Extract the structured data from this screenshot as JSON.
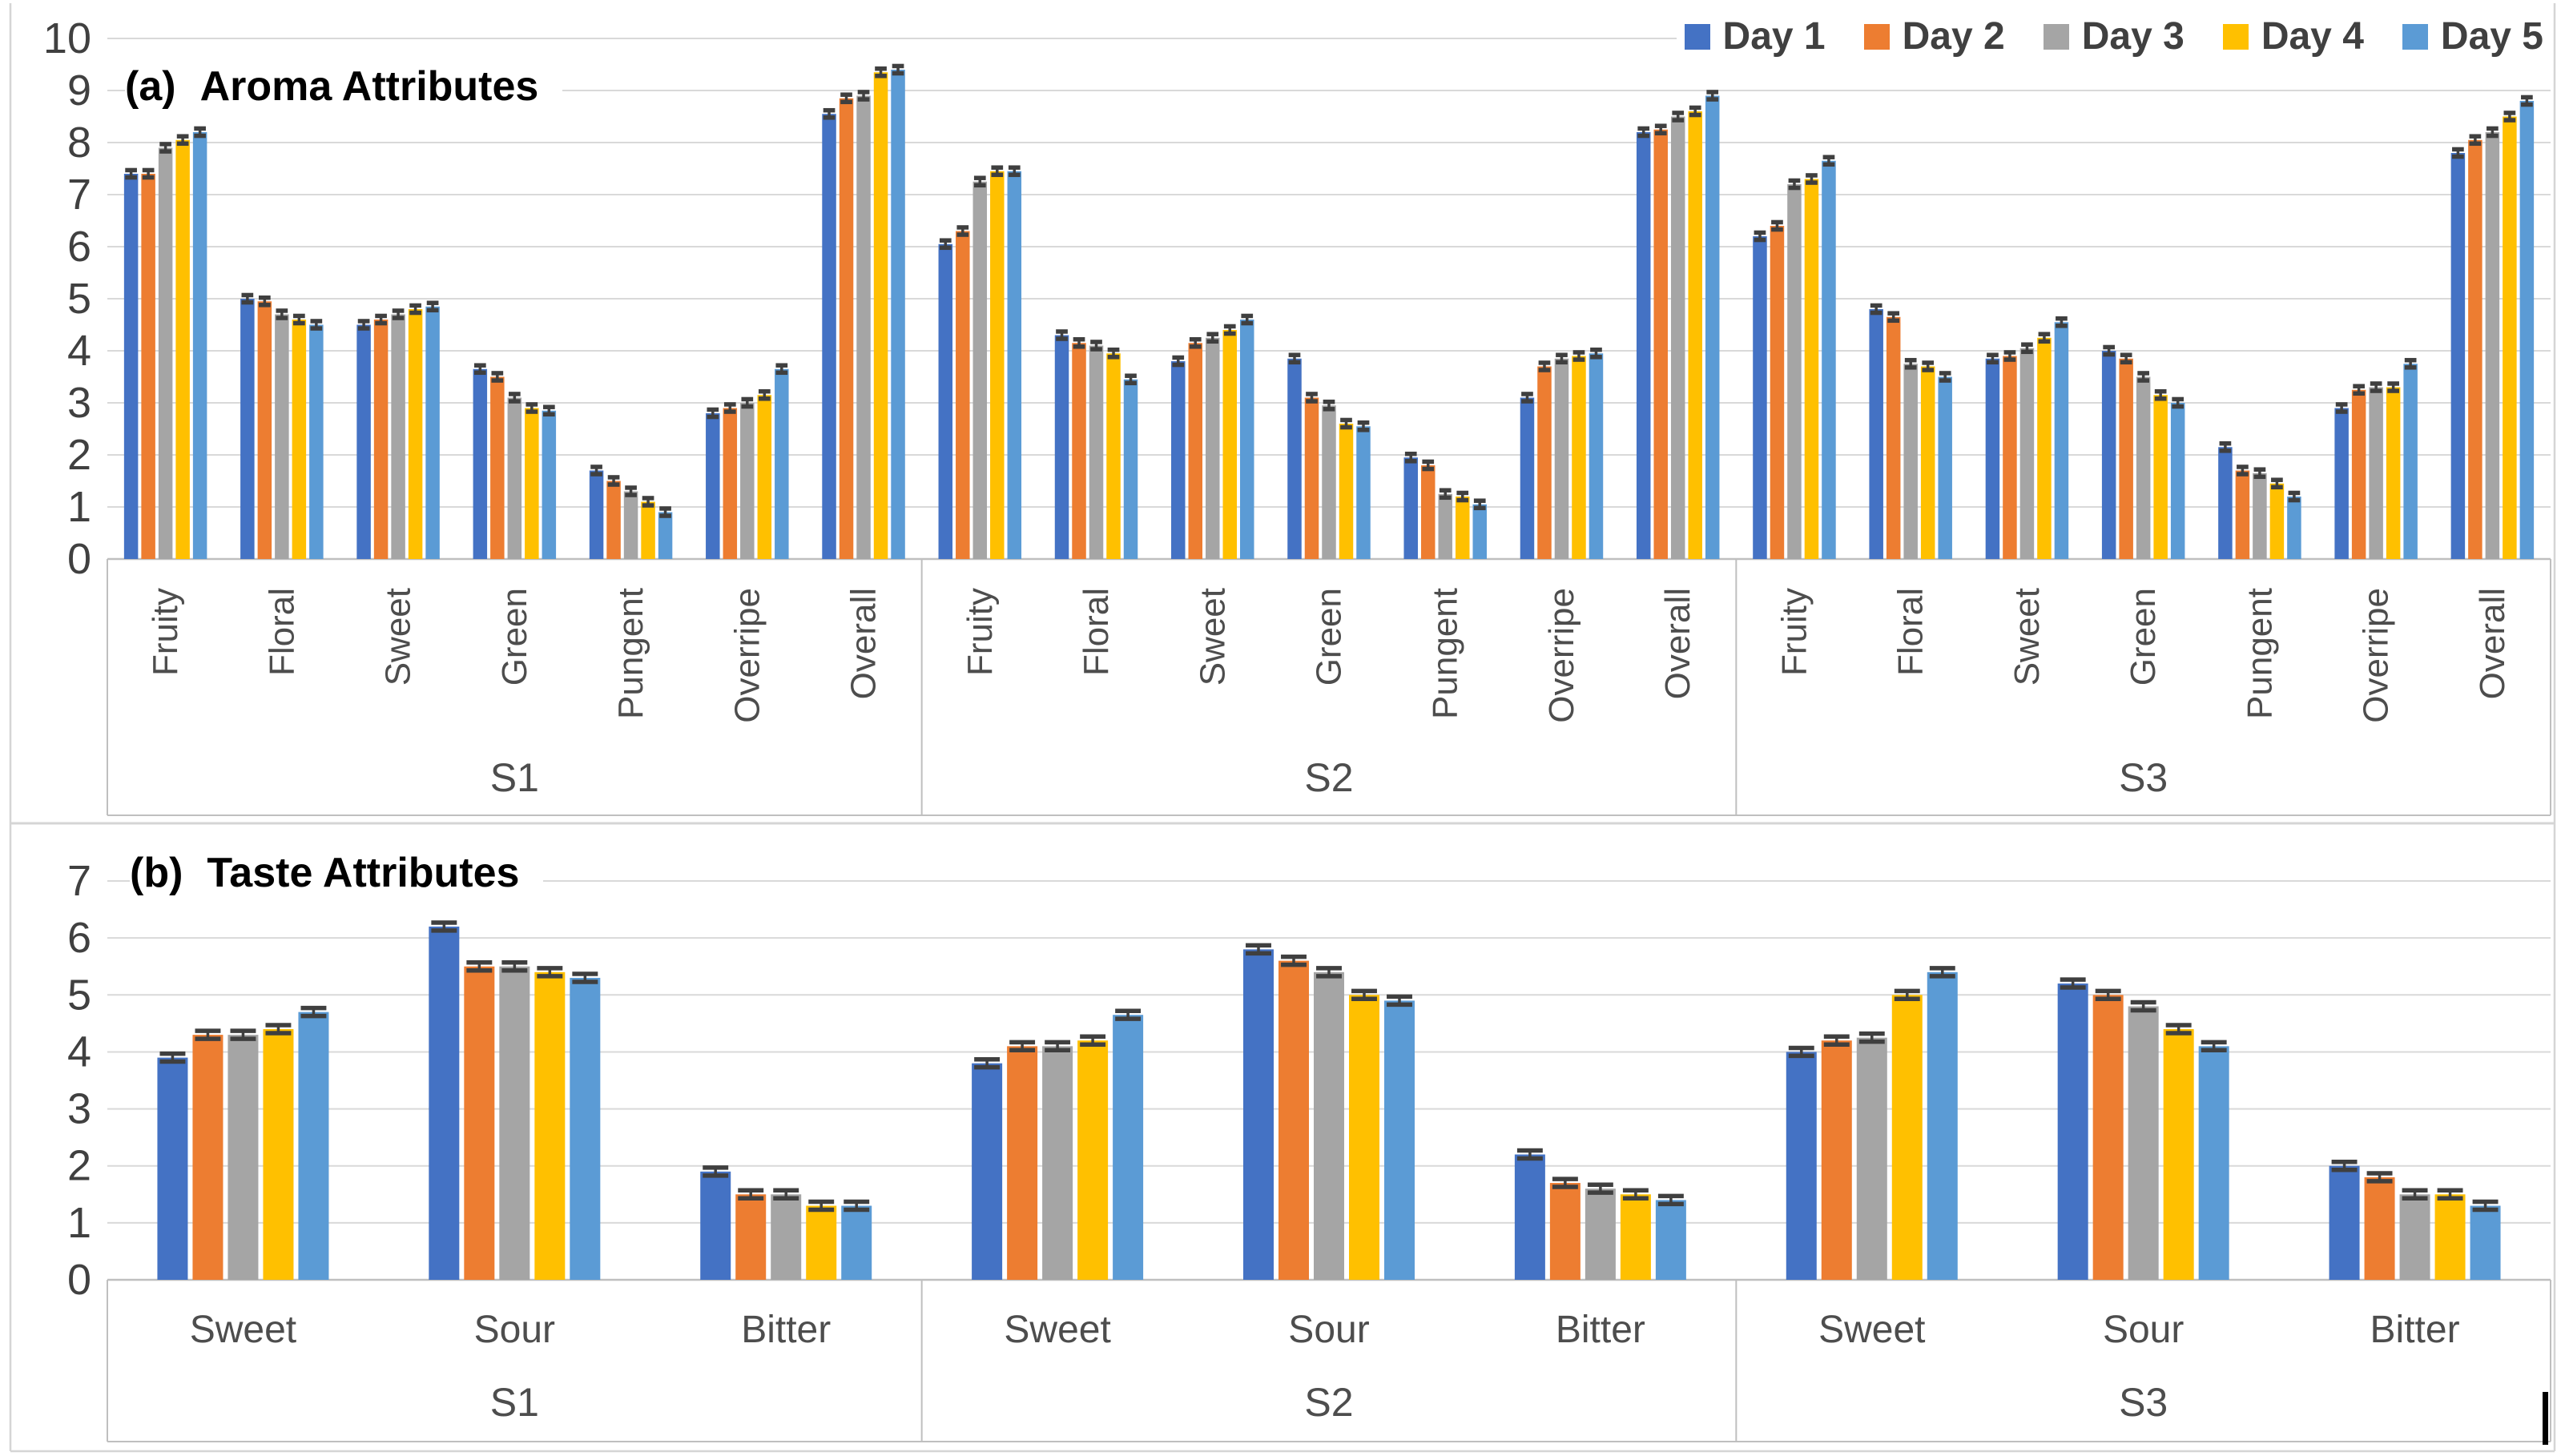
{
  "figure": {
    "colors": {
      "grid": "#D9D9D9",
      "axis_line": "#BFBFBF",
      "error_bar": "#3F3F3F",
      "tick_text": "#404040",
      "category_text": "#4D4D4D",
      "legend_text": "#404040",
      "title_text": "#000000",
      "background": "#FFFFFF",
      "panel_border": "#D5D5D5"
    }
  },
  "chart_data": [
    {
      "id": "aroma",
      "type": "bar",
      "panel_label": "(a)",
      "title": "Aroma Attributes",
      "xlabel": "",
      "ylabel": "",
      "ylim": [
        0,
        10
      ],
      "yticks": [
        0,
        1,
        2,
        3,
        4,
        5,
        6,
        7,
        8,
        9,
        10
      ],
      "grid": true,
      "legend_position": "top-right",
      "error_bar": 0.07,
      "groups": [
        "S1",
        "S2",
        "S3"
      ],
      "categories": [
        "Fruity",
        "Floral",
        "Sweet",
        "Green",
        "Pungent",
        "Overripe",
        "Overall"
      ],
      "series": [
        {
          "name": "Day 1",
          "color": "#4472C4",
          "values": [
            [
              7.4,
              5.0,
              4.5,
              3.65,
              1.7,
              2.8,
              8.55
            ],
            [
              6.05,
              4.3,
              3.8,
              3.85,
              1.95,
              3.1,
              8.2
            ],
            [
              6.2,
              4.8,
              3.85,
              4.0,
              2.15,
              2.9,
              7.8
            ]
          ]
        },
        {
          "name": "Day 2",
          "color": "#ED7D31",
          "values": [
            [
              7.4,
              4.95,
              4.6,
              3.5,
              1.5,
              2.9,
              8.85
            ],
            [
              6.3,
              4.15,
              4.15,
              3.1,
              1.8,
              3.7,
              8.25
            ],
            [
              6.4,
              4.65,
              3.9,
              3.85,
              1.7,
              3.25,
              8.05
            ]
          ]
        },
        {
          "name": "Day 3",
          "color": "#A5A5A5",
          "values": [
            [
              7.9,
              4.7,
              4.7,
              3.1,
              1.3,
              3.0,
              8.9
            ],
            [
              7.25,
              4.1,
              4.25,
              2.95,
              1.25,
              3.85,
              8.5
            ],
            [
              7.2,
              3.75,
              4.05,
              3.5,
              1.65,
              3.3,
              8.2
            ]
          ]
        },
        {
          "name": "Day 4",
          "color": "#FFC000",
          "values": [
            [
              8.05,
              4.6,
              4.8,
              2.9,
              1.1,
              3.15,
              9.35
            ],
            [
              7.45,
              3.95,
              4.4,
              2.6,
              1.2,
              3.9,
              8.6
            ],
            [
              7.3,
              3.7,
              4.25,
              3.15,
              1.45,
              3.3,
              8.5
            ]
          ]
        },
        {
          "name": "Day 5",
          "color": "#5B9BD5",
          "values": [
            [
              8.2,
              4.5,
              4.85,
              2.85,
              0.9,
              3.65,
              9.4
            ],
            [
              7.45,
              3.45,
              4.6,
              2.55,
              1.05,
              3.95,
              8.9
            ],
            [
              7.65,
              3.5,
              4.55,
              3.0,
              1.2,
              3.75,
              8.8
            ]
          ]
        }
      ]
    },
    {
      "id": "taste",
      "type": "bar",
      "panel_label": "(b)",
      "title": "Taste Attributes",
      "xlabel": "",
      "ylabel": "",
      "ylim": [
        0,
        7
      ],
      "yticks": [
        0,
        1,
        2,
        3,
        4,
        5,
        6,
        7
      ],
      "grid": true,
      "legend_position": "shared-top-right",
      "error_bar": 0.07,
      "groups": [
        "S1",
        "S2",
        "S3"
      ],
      "categories": [
        "Sweet",
        "Sour",
        "Bitter"
      ],
      "series": [
        {
          "name": "Day 1",
          "color": "#4472C4",
          "values": [
            [
              3.9,
              6.2,
              1.9
            ],
            [
              3.8,
              5.8,
              2.2
            ],
            [
              4.0,
              5.2,
              2.0
            ]
          ]
        },
        {
          "name": "Day 2",
          "color": "#ED7D31",
          "values": [
            [
              4.3,
              5.5,
              1.5
            ],
            [
              4.1,
              5.6,
              1.7
            ],
            [
              4.2,
              5.0,
              1.8
            ]
          ]
        },
        {
          "name": "Day 3",
          "color": "#A5A5A5",
          "values": [
            [
              4.3,
              5.5,
              1.5
            ],
            [
              4.1,
              5.4,
              1.6
            ],
            [
              4.25,
              4.8,
              1.5
            ]
          ]
        },
        {
          "name": "Day 4",
          "color": "#FFC000",
          "values": [
            [
              4.4,
              5.4,
              1.3
            ],
            [
              4.2,
              5.0,
              1.5
            ],
            [
              5.0,
              4.4,
              1.5
            ]
          ]
        },
        {
          "name": "Day 5",
          "color": "#5B9BD5",
          "values": [
            [
              4.7,
              5.3,
              1.3
            ],
            [
              4.65,
              4.9,
              1.4
            ],
            [
              5.4,
              4.1,
              1.3
            ]
          ]
        }
      ]
    }
  ]
}
